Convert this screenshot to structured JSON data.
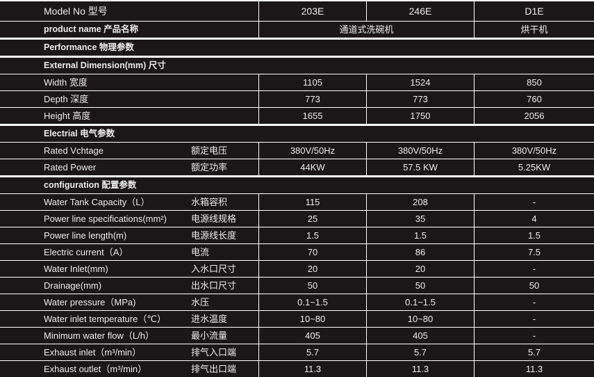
{
  "header": {
    "label": "Model No 型号",
    "models": [
      "203E",
      "246E",
      "D1E"
    ]
  },
  "product": {
    "label": "product name 产品名称",
    "dishwasher": "通道式洗碗机",
    "dryer": "烘干机"
  },
  "rows": [
    {
      "type": "section",
      "label": "Performance 物理参数"
    },
    {
      "type": "section",
      "label": "External Dimension(mm) 尺寸"
    },
    {
      "type": "data",
      "label": "Width  宽度",
      "sub": "",
      "values": [
        "1105",
        "1524",
        "850"
      ]
    },
    {
      "type": "data",
      "label": "Depth  深度",
      "sub": "",
      "values": [
        "773",
        "773",
        "760"
      ]
    },
    {
      "type": "data",
      "label": "Height 高度",
      "sub": "",
      "values": [
        "1655",
        "1750",
        "2056"
      ]
    },
    {
      "type": "section",
      "label": "Electrial 电气参数"
    },
    {
      "type": "data",
      "label": "Rated Vchtage",
      "sub": "额定电压",
      "values": [
        "380V/50Hz",
        "380V/50Hz",
        "380V/50Hz"
      ]
    },
    {
      "type": "data",
      "label": "Rated Power",
      "sub": "额定功率",
      "values": [
        "44KW",
        "57.5 KW",
        "5.25KW"
      ]
    },
    {
      "type": "section",
      "label": "configuration 配置参数"
    },
    {
      "type": "data",
      "label": "Water Tank Capacity（L）",
      "sub": "水箱容积",
      "values": [
        "115",
        "208",
        "-"
      ]
    },
    {
      "type": "data",
      "label": "Power line specifications(mm²)",
      "sub": "电源线规格",
      "values": [
        "25",
        "35",
        "4"
      ]
    },
    {
      "type": "data",
      "label": "Power line length(m)",
      "sub": "电源线长度",
      "values": [
        "1.5",
        "1.5",
        "1.5"
      ]
    },
    {
      "type": "data",
      "label": "Electric current（A）",
      "sub": "电流",
      "values": [
        "70",
        "86",
        "7.5"
      ]
    },
    {
      "type": "data",
      "label": "Water Inlet(mm)",
      "sub": "入水口尺寸",
      "values": [
        "20",
        "20",
        "-"
      ]
    },
    {
      "type": "data",
      "label": "Drainage(mm)",
      "sub": "出水口尺寸",
      "values": [
        "50",
        "50",
        "50"
      ]
    },
    {
      "type": "data",
      "label": "Water pressure（MPa)",
      "sub": "水压",
      "values": [
        "0.1~1.5",
        "0.1~1.5",
        "-"
      ]
    },
    {
      "type": "data",
      "label": "Water inlet temperature（℃）",
      "sub": "进水温度",
      "values": [
        "10~80",
        "10~80",
        "-"
      ]
    },
    {
      "type": "data",
      "label": "Minimum water flow（L/h）",
      "sub": "最小流量",
      "values": [
        "405",
        "405",
        "-"
      ]
    },
    {
      "type": "data",
      "label": "Exhaust inlet（m³/min）",
      "sub": "排气入口端",
      "values": [
        "5.7",
        "5.7",
        "5.7"
      ]
    },
    {
      "type": "data",
      "label": "Exhaust outlet（m³/min）",
      "sub": "排气出口端",
      "values": [
        "11.3",
        "11.3",
        "11.3"
      ]
    }
  ]
}
